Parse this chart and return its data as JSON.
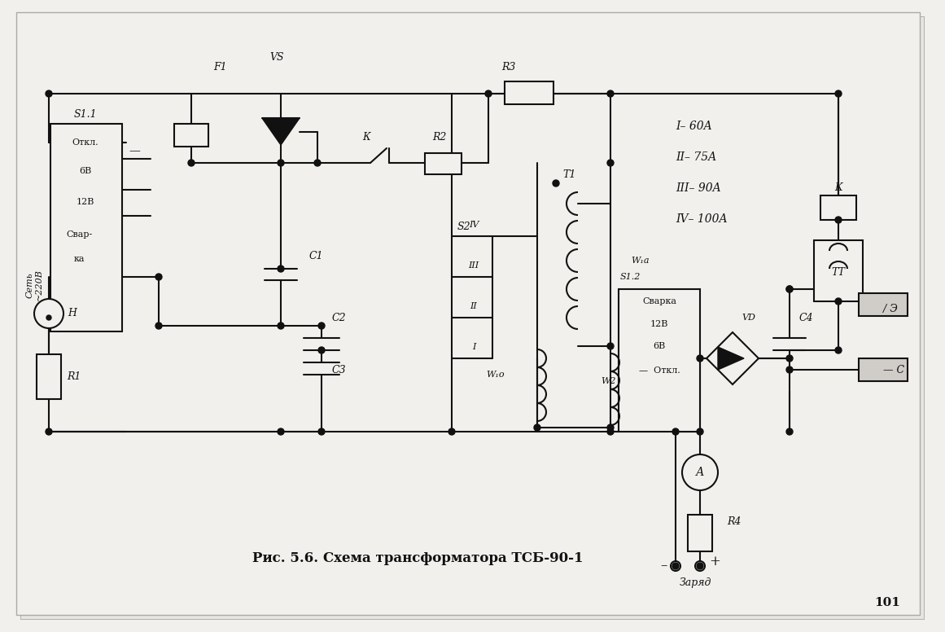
{
  "bg_color": "#f2f0ed",
  "line_color": "#111111",
  "caption": "Рис. 5.6. Схема трансформатора ТСБ-90-1",
  "page_number": "101",
  "legend": [
    "I– 60A",
    "II– 75A",
    "III– 90A",
    "IV– 100A"
  ]
}
